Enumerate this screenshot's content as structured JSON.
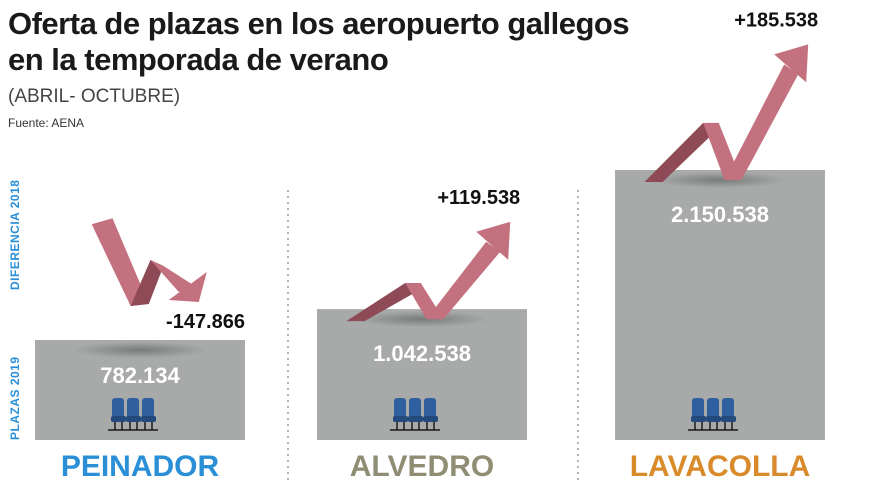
{
  "header": {
    "title": "Oferta de plazas en los aeropuerto gallegos en la temporada de verano",
    "subtitle": "(ABRIL- OCTUBRE)",
    "source": "Fuente: AENA"
  },
  "axis_labels": {
    "diff": "DIFERENCIA 2018",
    "plazas": "PLAZAS 2019"
  },
  "colors": {
    "box": "#a7aaa9",
    "arrow": "#c4717f",
    "arrow_dark": "#8f4a58",
    "label_blue": "#2a8fd6",
    "seat": "#2f5f9e"
  },
  "chart_data": {
    "type": "bar",
    "title": "Oferta de plazas en los aeropuerto gallegos en la temporada de verano",
    "categories": [
      "PEINADOR",
      "ALVEDRO",
      "LAVACOLLA"
    ],
    "category_colors": [
      "#2a8fd6",
      "#8f8d74",
      "#d98b2b"
    ],
    "series": [
      {
        "name": "PLAZAS 2019",
        "values": [
          782134,
          1042538,
          2150538
        ],
        "labels": [
          "782.134",
          "1.042.538",
          "2.150.538"
        ]
      },
      {
        "name": "DIFERENCIA 2018",
        "values": [
          -147866,
          119538,
          185538
        ],
        "labels": [
          "-147.866",
          "+119.538",
          "+185.538"
        ]
      }
    ]
  }
}
